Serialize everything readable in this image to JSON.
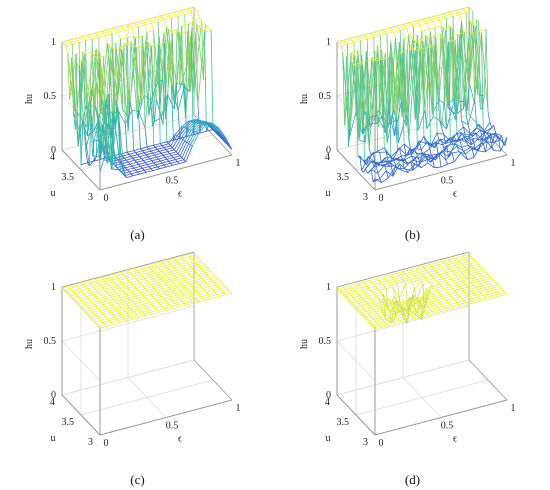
{
  "chart_data": [
    {
      "type": "surface",
      "caption": "(a)",
      "xlabel": "ϵ",
      "ylabel": "u",
      "zlabel": "hu",
      "x_ticks": [
        "0",
        "0.5",
        "1"
      ],
      "y_ticks": [
        "3",
        "3.5",
        "4"
      ],
      "z_ticks": [
        "0",
        "0.5",
        "1"
      ],
      "xlim": [
        0,
        1
      ],
      "ylim": [
        3,
        4
      ],
      "zlim": [
        0,
        1
      ],
      "grid": true,
      "colormap": [
        "#3b3ec4",
        "#2aa3c4",
        "#3cbd9e",
        "#a3d353",
        "#f4f046"
      ],
      "description_values": {
        "u_near_4_value": 1,
        "low_u_large_eps_value": 0.05,
        "high_u_large_eps_value": 0.1,
        "bump_max_value": 0.35
      }
    },
    {
      "type": "surface",
      "caption": "(b)",
      "xlabel": "ϵ",
      "ylabel": "u",
      "zlabel": "hu",
      "x_ticks": [
        "0",
        "0.5",
        "1"
      ],
      "y_ticks": [
        "3",
        "3.5",
        "4"
      ],
      "z_ticks": [
        "0",
        "0.5",
        "1"
      ],
      "xlim": [
        0,
        1
      ],
      "ylim": [
        3,
        4
      ],
      "zlim": [
        0,
        1
      ],
      "grid": true,
      "colormap": [
        "#3b3ec4",
        "#2aa3c4",
        "#3cbd9e",
        "#a3d353",
        "#f4f046"
      ]
    },
    {
      "type": "surface",
      "caption": "(c)",
      "xlabel": "ϵ",
      "ylabel": "u",
      "zlabel": "hu",
      "x_ticks": [
        "0",
        "0.5",
        "1"
      ],
      "y_ticks": [
        "3",
        "3.5",
        "4"
      ],
      "z_ticks": [
        "0",
        "0.5",
        "1"
      ],
      "xlim": [
        0,
        1
      ],
      "ylim": [
        3,
        4
      ],
      "zlim": [
        0,
        1
      ],
      "grid": true,
      "colormap": [
        "#3b3ec4",
        "#2aa3c4",
        "#3cbd9e",
        "#a3d353",
        "#f4f046"
      ],
      "surface_value": 0.99
    },
    {
      "type": "surface",
      "caption": "(d)",
      "xlabel": "ϵ",
      "ylabel": "u",
      "zlabel": "hu",
      "x_ticks": [
        "0",
        "0.5",
        "1"
      ],
      "y_ticks": [
        "3",
        "3.5",
        "4"
      ],
      "z_ticks": [
        "0",
        "0.5",
        "1"
      ],
      "xlim": [
        0,
        1
      ],
      "ylim": [
        3,
        4
      ],
      "zlim": [
        0,
        1
      ],
      "grid": true,
      "colormap": [
        "#3b3ec4",
        "#2aa3c4",
        "#3cbd9e",
        "#a3d353",
        "#f4f046"
      ],
      "surface_value": 0.98
    }
  ]
}
